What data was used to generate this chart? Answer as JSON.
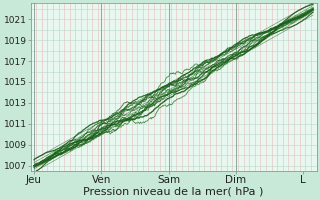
{
  "xlabel": "Pression niveau de la mer( hPa )",
  "bg_color": "#c8e8d8",
  "plot_bg_color": "#e8f8f0",
  "line_color_dark": "#1a5c1a",
  "line_color_mid": "#2a7a2a",
  "ylim": [
    1006.5,
    1022.5
  ],
  "yticks": [
    1007,
    1009,
    1011,
    1013,
    1015,
    1017,
    1019,
    1021
  ],
  "xtick_labels": [
    "Jeu",
    "Ven",
    "Sam",
    "Dim",
    "L"
  ],
  "xtick_positions": [
    0,
    1,
    2,
    3,
    4
  ],
  "xlim": [
    -0.05,
    4.2
  ],
  "xlabel_fontsize": 8,
  "ytick_fontsize": 6.5,
  "xtick_fontsize": 7.5,
  "vgrid_color": "#e8b8b8",
  "hgrid_color": "#b8d8c8",
  "day_line_color": "#88aaa0"
}
